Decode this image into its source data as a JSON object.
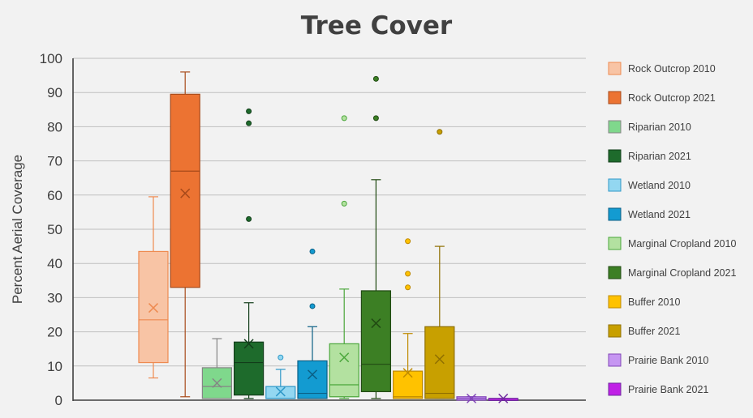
{
  "chart_data": {
    "type": "box",
    "title": "Tree Cover",
    "xlabel": "",
    "ylabel": "Percent Aerial Coverage",
    "ylim": [
      0,
      100
    ],
    "yticks": [
      0,
      10,
      20,
      30,
      40,
      50,
      60,
      70,
      80,
      90,
      100
    ],
    "grid": true,
    "legend_position": "right",
    "series": [
      {
        "name": "Rock Outcrop 2010",
        "fill": "#f8c4a5",
        "stroke": "#ee8a50",
        "min": 6.5,
        "q1": 11,
        "median": 23.5,
        "q3": 43.5,
        "max": 59.5,
        "mean": 27,
        "outliers": []
      },
      {
        "name": "Rock Outcrop 2021",
        "fill": "#ec7332",
        "stroke": "#a84a1a",
        "min": 1,
        "q1": 33,
        "median": 67,
        "q3": 89.5,
        "max": 96,
        "mean": 60.5,
        "outliers": []
      },
      {
        "name": "Riparian 2010",
        "fill": "#7fd88c",
        "stroke": "#858585",
        "min": 0.5,
        "q1": 0.5,
        "median": 4,
        "q3": 9.5,
        "max": 18,
        "mean": 5,
        "outliers": []
      },
      {
        "name": "Riparian 2021",
        "fill": "#1e6b2c",
        "stroke": "#123d1a",
        "min": 0.5,
        "q1": 1.5,
        "median": 11,
        "q3": 17,
        "max": 28.5,
        "mean": 16.5,
        "outliers": [
          53,
          81,
          84.5
        ]
      },
      {
        "name": "Wetland 2010",
        "fill": "#93d7f1",
        "stroke": "#2f98c8",
        "min": 0.5,
        "q1": 0.5,
        "median": 0.5,
        "q3": 4,
        "max": 9,
        "mean": 2.5,
        "outliers": [
          12.5
        ]
      },
      {
        "name": "Wetland 2021",
        "fill": "#139bd1",
        "stroke": "#0b5f85",
        "min": 0.5,
        "q1": 0.5,
        "median": 2,
        "q3": 11.5,
        "max": 21.5,
        "mean": 7.5,
        "outliers": [
          27.5,
          43.5
        ]
      },
      {
        "name": "Marginal Cropland 2010",
        "fill": "#b3e1a0",
        "stroke": "#4aa63a",
        "min": 0.5,
        "q1": 1,
        "median": 4.5,
        "q3": 16.5,
        "max": 32.5,
        "mean": 12.5,
        "outliers": [
          57.5,
          82.5
        ]
      },
      {
        "name": "Marginal Cropland 2021",
        "fill": "#3c7f24",
        "stroke": "#214a13",
        "min": 0.5,
        "q1": 2.5,
        "median": 10.5,
        "q3": 32,
        "max": 64.5,
        "mean": 22.5,
        "outliers": [
          82.5,
          94
        ]
      },
      {
        "name": "Buffer 2010",
        "fill": "#ffc200",
        "stroke": "#bf8a00",
        "min": 0.5,
        "q1": 0.5,
        "median": 1,
        "q3": 8.5,
        "max": 19.5,
        "mean": 8,
        "outliers": [
          33,
          37,
          46.5
        ]
      },
      {
        "name": "Buffer 2021",
        "fill": "#c8a000",
        "stroke": "#8f6f00",
        "min": 0.5,
        "q1": 0.5,
        "median": 2,
        "q3": 21.5,
        "max": 45,
        "mean": 12,
        "outliers": [
          78.5
        ]
      },
      {
        "name": "Prairie Bank 2010",
        "fill": "#c696f2",
        "stroke": "#8145b8",
        "min": 0,
        "q1": 0,
        "median": 0.5,
        "q3": 1,
        "max": 1,
        "mean": 0.5,
        "outliers": []
      },
      {
        "name": "Prairie Bank 2021",
        "fill": "#c020e6",
        "stroke": "#6f2a9e",
        "min": 0,
        "q1": 0,
        "median": 0.5,
        "q3": 0.5,
        "max": 0.5,
        "mean": 0.5,
        "outliers": []
      }
    ]
  }
}
